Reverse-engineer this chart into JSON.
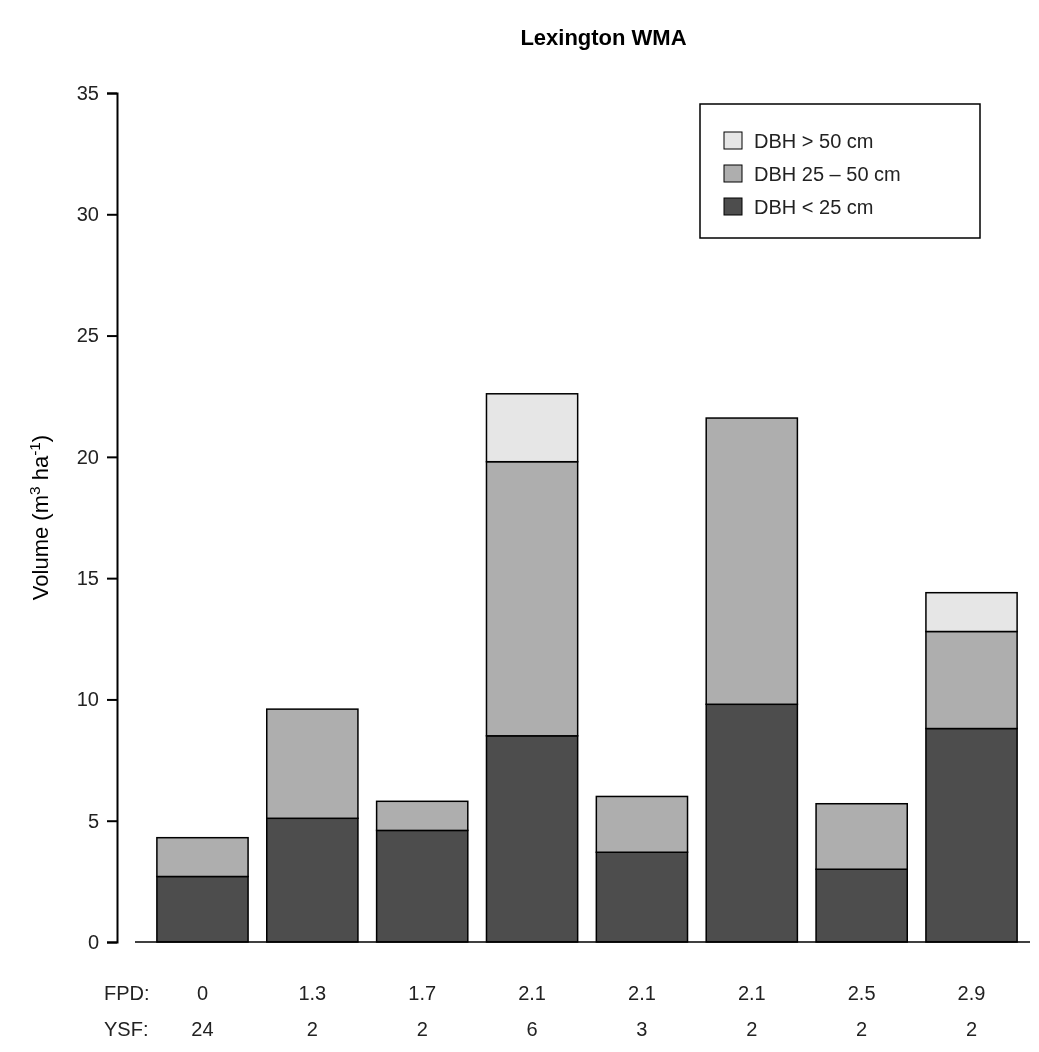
{
  "chart_data": {
    "type": "bar",
    "title": "Lexington WMA",
    "ylabel": "Volume (m$^{3}$ ha$^{-1}$)",
    "categories": [
      "0\n24",
      "1.3\n2",
      "1.7\n2",
      "2.1\n6",
      "2.1\n3",
      "2.1\n2",
      "2.5\n2",
      "2.9\n2"
    ],
    "annotations": [
      "FPD:",
      "YSF:"
    ],
    "stacked": true,
    "legend": "top right",
    "grid": false,
    "ylim": [
      0,
      35
    ],
    "yticks": [
      0,
      5,
      10,
      15,
      20,
      25,
      30,
      35
    ],
    "series": [
      {
        "name": "DBH < 25 cm",
        "color": "#4d4d4d",
        "values": [
          2.7,
          5.1,
          4.6,
          8.5,
          3.7,
          9.8,
          3.0,
          8.8
        ]
      },
      {
        "name": "DBH 25 – 50 cm",
        "color": "#aeaeae",
        "values": [
          1.6,
          4.5,
          1.2,
          11.3,
          2.3,
          11.8,
          2.7,
          4.0
        ]
      },
      {
        "name": "DBH > 50 cm",
        "color": "#e6e6e6",
        "values": [
          null,
          null,
          null,
          2.8,
          null,
          null,
          null,
          1.6
        ]
      }
    ]
  }
}
